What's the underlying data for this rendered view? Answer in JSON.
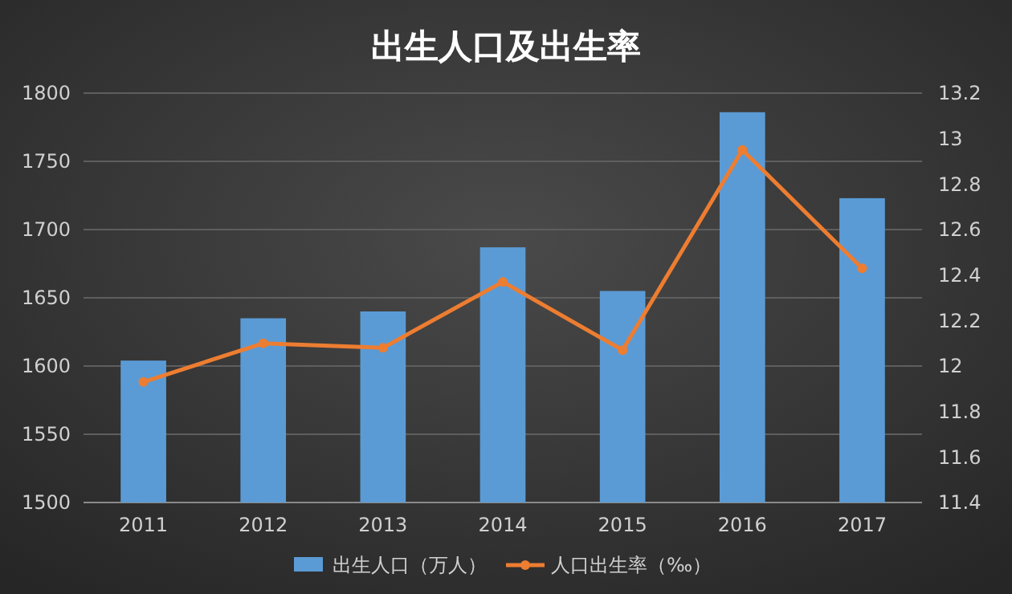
{
  "chart_data": {
    "type": "bar",
    "title": "出生人口及出生率",
    "categories": [
      "2011",
      "2012",
      "2013",
      "2014",
      "2015",
      "2016",
      "2017"
    ],
    "series": [
      {
        "name": "出生人口（万人）",
        "color": "#5b9bd5",
        "values": [
          1604,
          1635,
          1640,
          1687,
          1655,
          1786,
          1723
        ]
      },
      {
        "name": "人口出生率（‰）",
        "type": "line",
        "axis": "y2",
        "color": "#ed7d31",
        "values": [
          11.93,
          12.1,
          12.08,
          12.37,
          12.07,
          12.95,
          12.43
        ],
        "marker": "circle"
      }
    ],
    "ylim": [
      1500,
      1800
    ],
    "yticks": [
      1500,
      1550,
      1600,
      1650,
      1700,
      1750,
      1800
    ],
    "y2lim": [
      11.4,
      13.2
    ],
    "y2ticks": [
      {
        "value": 11.4,
        "label": "11.4"
      },
      {
        "value": 11.6,
        "label": "11.6"
      },
      {
        "value": 11.8,
        "label": "11.8"
      },
      {
        "value": 12,
        "label": "12"
      },
      {
        "value": 12.2,
        "label": "12.2"
      },
      {
        "value": 12.4,
        "label": "12.4"
      },
      {
        "value": 12.6,
        "label": "12.6"
      },
      {
        "value": 12.8,
        "label": "12.8"
      },
      {
        "value": 13,
        "label": "13"
      },
      {
        "value": 13.2,
        "label": "13.2"
      }
    ],
    "grid": "y",
    "legend": "bottom"
  }
}
